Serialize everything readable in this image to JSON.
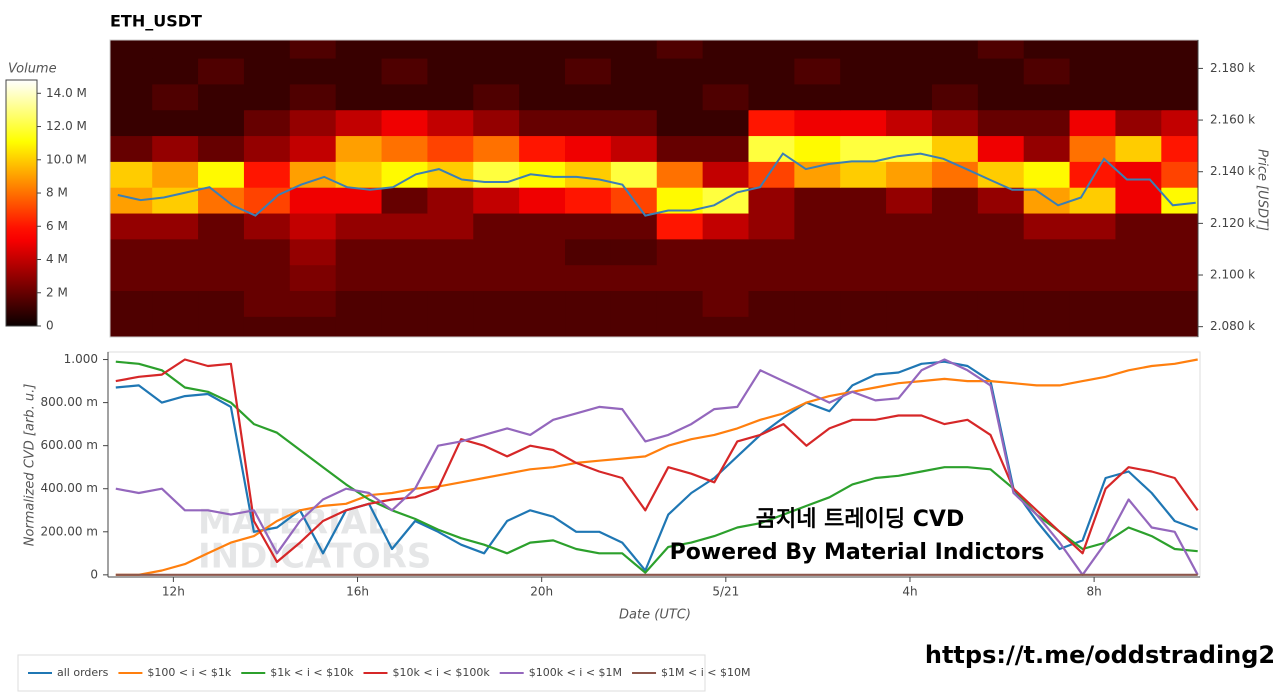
{
  "chart_data": [
    {
      "type": "heatmap",
      "title": "ETH_USDT",
      "colorbar_title": "Volume",
      "y_label": "Price [USDT]",
      "colorscale": "hot",
      "xlim": [
        10.58,
        34.3
      ],
      "ylim": [
        2076,
        2191
      ],
      "yticks": [
        {
          "value": 2080,
          "label": "2.080 k"
        },
        {
          "value": 2100,
          "label": "2.100 k"
        },
        {
          "value": 2120,
          "label": "2.120 k"
        },
        {
          "value": 2140,
          "label": "2.140 k"
        },
        {
          "value": 2160,
          "label": "2.160 k"
        },
        {
          "value": 2180,
          "label": "2.180 k"
        }
      ],
      "zlim": [
        0,
        14.8
      ],
      "zticks": [
        0,
        {
          "value": 2,
          "label": "2 M"
        },
        {
          "value": 4,
          "label": "4 M"
        },
        {
          "value": 6,
          "label": "6 M"
        },
        {
          "value": 8,
          "label": "8 M"
        },
        {
          "value": 10,
          "label": "10.0 M"
        },
        {
          "value": 12,
          "label": "12.0 M"
        },
        {
          "value": 14,
          "label": "14.0 M"
        }
      ],
      "x_edges": [
        10.5,
        11.5,
        12.5,
        13.5,
        14.5,
        15.5,
        16.5,
        17.5,
        18.5,
        19.5,
        20.5,
        21.5,
        22.5,
        23.5,
        24.5,
        25.5,
        26.5,
        27.5,
        28.5,
        29.5,
        30.5,
        31.5,
        32.5,
        33.5,
        34.5
      ],
      "y_edges": [
        2074,
        2084,
        2094,
        2104,
        2114,
        2124,
        2134,
        2144,
        2154,
        2164,
        2174,
        2184,
        2194
      ],
      "z": [
        [
          1.5,
          1.5,
          1.5,
          1.5,
          1.5,
          1.5,
          1.5,
          1.5,
          1.5,
          1.5,
          1.5,
          1.5,
          1.5,
          1.5,
          1.5,
          1.5,
          1.5,
          1.5,
          1.5,
          1.5,
          1.5,
          1.5,
          1.5,
          1.5
        ],
        [
          1.5,
          1.5,
          1.5,
          2,
          2,
          1.5,
          1.5,
          1.5,
          1.5,
          1.5,
          1.5,
          1.5,
          1.5,
          2,
          1.5,
          1.5,
          1.5,
          1.5,
          1.5,
          1.5,
          1.5,
          1.5,
          1.5,
          1.5
        ],
        [
          2,
          2,
          2,
          2,
          2.5,
          2,
          2,
          2,
          2,
          2,
          2,
          2,
          2,
          2,
          2,
          2,
          2,
          2,
          2,
          2,
          2,
          2,
          2,
          2
        ],
        [
          2,
          2,
          2,
          2,
          3,
          2,
          2,
          2,
          2,
          2,
          1.5,
          1.5,
          2,
          2,
          2,
          2,
          2,
          2,
          2,
          2,
          2,
          2,
          2,
          2
        ],
        [
          3,
          3,
          2,
          3,
          4,
          3,
          3,
          3,
          2,
          2,
          2,
          2,
          6,
          4,
          3,
          2,
          2,
          2,
          2,
          2,
          3,
          3,
          2,
          2
        ],
        [
          9,
          10,
          8,
          7,
          5,
          5,
          2,
          3,
          4,
          5,
          6,
          7,
          11,
          12,
          3,
          2,
          2,
          3,
          2,
          3,
          9,
          10,
          5,
          11
        ],
        [
          10,
          9,
          11,
          6,
          9,
          10,
          11,
          10,
          12,
          11,
          10,
          12,
          8,
          4,
          7,
          9,
          10,
          9,
          8,
          10,
          11,
          6,
          5,
          7
        ],
        [
          2,
          3,
          2,
          3,
          4,
          9,
          8,
          7,
          8,
          6,
          5,
          4,
          2,
          2,
          12,
          11,
          12,
          12,
          10,
          5,
          3,
          8,
          10,
          6
        ],
        [
          1,
          1,
          1,
          2,
          3,
          4,
          5,
          4,
          3,
          2,
          2,
          2,
          1,
          1,
          6,
          5,
          5,
          4,
          3,
          2,
          2,
          5,
          3,
          4
        ],
        [
          1,
          1.5,
          1,
          1,
          1.5,
          1,
          1,
          1,
          1.5,
          1,
          1,
          1,
          1,
          1.5,
          1,
          1,
          1,
          1,
          1.5,
          1,
          1,
          1,
          1,
          1
        ],
        [
          1,
          1,
          1.5,
          1,
          1,
          1,
          1.5,
          1,
          1,
          1,
          1.5,
          1,
          1,
          1,
          1,
          1.5,
          1,
          1,
          1,
          1,
          1.5,
          1,
          1,
          1
        ],
        [
          1,
          1,
          1,
          1,
          1.5,
          1,
          1,
          1,
          1,
          1,
          1,
          1,
          1.5,
          1,
          1,
          1,
          1,
          1,
          1,
          1.5,
          1,
          1,
          1,
          1
        ]
      ],
      "line": {
        "color": "#3b7fb5",
        "x": [
          10.75,
          11.25,
          11.75,
          12.25,
          12.75,
          13.25,
          13.75,
          14.25,
          14.75,
          15.25,
          15.75,
          16.25,
          16.75,
          17.25,
          17.75,
          18.25,
          18.75,
          19.25,
          19.75,
          20.25,
          20.75,
          21.25,
          21.75,
          22.25,
          22.75,
          23.25,
          23.75,
          24.25,
          24.75,
          25.25,
          25.75,
          26.25,
          26.75,
          27.25,
          27.75,
          28.25,
          28.75,
          29.25,
          29.75,
          30.25,
          30.75,
          31.25,
          31.75,
          32.25,
          32.75,
          33.25,
          33.75,
          34.25
        ],
        "values": [
          2131,
          2129,
          2130,
          2132,
          2134,
          2127,
          2123,
          2131,
          2135,
          2138,
          2134,
          2133,
          2134,
          2139,
          2141,
          2137,
          2136,
          2136,
          2139,
          2138,
          2138,
          2137,
          2135,
          2123,
          2125,
          2125,
          2127,
          2132,
          2134,
          2147,
          2141,
          2143,
          2144,
          2144,
          2146,
          2147,
          2145,
          2141,
          2137,
          2133,
          2133,
          2127,
          2130,
          2145,
          2137,
          2137,
          2127,
          2128
        ]
      }
    },
    {
      "type": "line",
      "y_label": "Normalized CVD [arb. u.]",
      "x_label": "Date (UTC)",
      "legend": "bottom",
      "xlim": [
        10.58,
        34.3
      ],
      "ylim": [
        -0.01,
        1.035
      ],
      "xticks": [
        {
          "value": 12,
          "label": "12h"
        },
        {
          "value": 16,
          "label": "16h"
        },
        {
          "value": 20,
          "label": "20h"
        },
        {
          "value": 24,
          "label": "5/21"
        },
        {
          "value": 28,
          "label": "4h"
        },
        {
          "value": 32,
          "label": "8h"
        }
      ],
      "yticks": [
        0,
        {
          "value": 0.2,
          "label": "200.00 m"
        },
        {
          "value": 0.4,
          "label": "400.00 m"
        },
        {
          "value": 0.6,
          "label": "600.00 m"
        },
        {
          "value": 0.8,
          "label": "800.00 m"
        },
        {
          "value": 1,
          "label": "1.000"
        }
      ],
      "x": [
        10.75,
        11.25,
        11.75,
        12.25,
        12.75,
        13.25,
        13.75,
        14.25,
        14.75,
        15.25,
        15.75,
        16.25,
        16.75,
        17.25,
        17.75,
        18.25,
        18.75,
        19.25,
        19.75,
        20.25,
        20.75,
        21.25,
        21.75,
        22.25,
        22.75,
        23.25,
        23.75,
        24.25,
        24.75,
        25.25,
        25.75,
        26.25,
        26.75,
        27.25,
        27.75,
        28.25,
        28.75,
        29.25,
        29.75,
        30.25,
        30.75,
        31.25,
        31.75,
        32.25,
        32.75,
        33.25,
        33.75,
        34.25
      ],
      "series": [
        {
          "name": "all orders",
          "color": "#1f77b4",
          "values": [
            0.87,
            0.88,
            0.8,
            0.83,
            0.84,
            0.78,
            0.2,
            0.22,
            0.3,
            0.1,
            0.3,
            0.33,
            0.12,
            0.25,
            0.2,
            0.14,
            0.1,
            0.25,
            0.3,
            0.27,
            0.2,
            0.2,
            0.15,
            0.02,
            0.28,
            0.38,
            0.45,
            0.55,
            0.65,
            0.73,
            0.8,
            0.76,
            0.88,
            0.93,
            0.94,
            0.98,
            0.99,
            0.97,
            0.9,
            0.4,
            0.25,
            0.12,
            0.16,
            0.45,
            0.48,
            0.38,
            0.25,
            0.21
          ]
        },
        {
          "name": "$100 < i < $1k",
          "color": "#ff7f0e",
          "values": [
            0,
            0,
            0.02,
            0.05,
            0.1,
            0.15,
            0.18,
            0.25,
            0.3,
            0.32,
            0.33,
            0.37,
            0.38,
            0.4,
            0.41,
            0.43,
            0.45,
            0.47,
            0.49,
            0.5,
            0.52,
            0.53,
            0.54,
            0.55,
            0.6,
            0.63,
            0.65,
            0.68,
            0.72,
            0.75,
            0.8,
            0.83,
            0.85,
            0.87,
            0.89,
            0.9,
            0.91,
            0.9,
            0.9,
            0.89,
            0.88,
            0.88,
            0.9,
            0.92,
            0.95,
            0.97,
            0.98,
            1.0
          ]
        },
        {
          "name": "$1k < i < $10k",
          "color": "#2ca02c",
          "values": [
            0.99,
            0.98,
            0.95,
            0.87,
            0.85,
            0.8,
            0.7,
            0.66,
            0.58,
            0.5,
            0.42,
            0.35,
            0.3,
            0.26,
            0.21,
            0.17,
            0.14,
            0.1,
            0.15,
            0.16,
            0.12,
            0.1,
            0.1,
            0.01,
            0.13,
            0.15,
            0.18,
            0.22,
            0.24,
            0.28,
            0.32,
            0.36,
            0.42,
            0.45,
            0.46,
            0.48,
            0.5,
            0.5,
            0.49,
            0.4,
            0.28,
            0.2,
            0.12,
            0.15,
            0.22,
            0.18,
            0.12,
            0.11
          ]
        },
        {
          "name": "$10k < i < $100k",
          "color": "#d62728",
          "values": [
            0.9,
            0.92,
            0.93,
            1.0,
            0.97,
            0.98,
            0.25,
            0.06,
            0.15,
            0.25,
            0.3,
            0.33,
            0.35,
            0.36,
            0.4,
            0.63,
            0.6,
            0.55,
            0.6,
            0.58,
            0.52,
            0.48,
            0.45,
            0.3,
            0.5,
            0.47,
            0.43,
            0.62,
            0.65,
            0.7,
            0.6,
            0.68,
            0.72,
            0.72,
            0.74,
            0.74,
            0.7,
            0.72,
            0.65,
            0.4,
            0.3,
            0.2,
            0.1,
            0.4,
            0.5,
            0.48,
            0.45,
            0.3
          ]
        },
        {
          "name": "$100k < i < $1M",
          "color": "#9467bd",
          "values": [
            0.4,
            0.38,
            0.4,
            0.3,
            0.3,
            0.28,
            0.3,
            0.1,
            0.25,
            0.35,
            0.4,
            0.38,
            0.3,
            0.4,
            0.6,
            0.62,
            0.65,
            0.68,
            0.65,
            0.72,
            0.75,
            0.78,
            0.77,
            0.62,
            0.65,
            0.7,
            0.77,
            0.78,
            0.95,
            0.9,
            0.85,
            0.8,
            0.85,
            0.81,
            0.82,
            0.95,
            1.0,
            0.95,
            0.88,
            0.38,
            0.28,
            0.15,
            0.0,
            0.15,
            0.35,
            0.22,
            0.2,
            0.0
          ]
        },
        {
          "name": "$1M < i < $10M",
          "color": "#8c564b",
          "values": [
            0,
            0,
            0,
            0,
            0,
            0,
            0,
            0,
            0,
            0,
            0,
            0,
            0,
            0,
            0,
            0,
            0,
            0,
            0,
            0,
            0,
            0,
            0,
            0,
            0,
            0,
            0,
            0,
            0,
            0,
            0,
            0,
            0,
            0,
            0,
            0,
            0,
            0,
            0,
            0,
            0,
            0,
            0,
            0,
            0,
            0,
            0,
            0
          ]
        }
      ],
      "watermark": [
        "MATERIAL",
        "INDICATORS"
      ],
      "annotations": [
        "곰지네 트레이딩 CVD",
        "Powered By Material Indictors"
      ]
    }
  ],
  "link": "https://t.me/oddstrading2"
}
